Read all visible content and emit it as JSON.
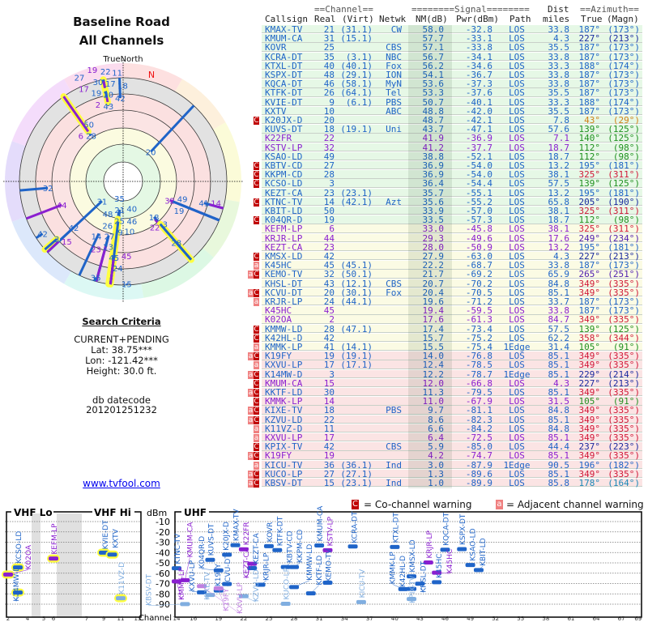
{
  "left": {
    "title1": "Baseline Road",
    "title2": "All Channels",
    "true_north": "TrueNorth",
    "mag_north": "N",
    "criteria_title": "Search Criteria",
    "mode": "CURRENT+PENDING",
    "lat": "Lat: 38.75***",
    "lon": "Lon: -121.42***",
    "height": "Height: 30.0 ft.",
    "db_label": "db datecode",
    "db_value": "201201251232",
    "link": "www.tvfool.com"
  },
  "table": {
    "group_channel": "==Channel==",
    "group_signal": "========Signal========",
    "group_dist": "Dist",
    "group_azimuth": "==Azimuth==",
    "col_callsign": "Callsign",
    "col_real": "Real",
    "col_virt": "(Virt)",
    "col_netwk": "Netwk",
    "col_nm": "NM(dB)",
    "col_pwr": "Pwr(dBm)",
    "col_path": "Path",
    "col_miles": "miles",
    "col_true": "True",
    "col_magn": "(Magn)",
    "rows": [
      {
        "f": "",
        "call": "KMAX-TV",
        "real": "21",
        "virt": "(31.1)",
        "net": "CW",
        "nm": "58.0",
        "pwr": "-32.8",
        "path": "LOS",
        "dist": "33.8",
        "tru": "187°",
        "mag": "(173°)",
        "c": "b"
      },
      {
        "f": "",
        "call": "KMUM-CA",
        "real": "31",
        "virt": "(15.1)",
        "net": "",
        "nm": "57.7",
        "pwr": "-33.1",
        "path": "LOS",
        "dist": "4.3",
        "tru": "227°",
        "mag": "(213°)",
        "c": "b"
      },
      {
        "f": "",
        "call": "KOVR",
        "real": "25",
        "virt": "",
        "net": "CBS",
        "nm": "57.1",
        "pwr": "-33.8",
        "path": "LOS",
        "dist": "35.5",
        "tru": "187°",
        "mag": "(173°)",
        "c": "b"
      },
      {
        "f": "",
        "call": "KCRA-DT",
        "real": "35",
        "virt": "(3.1)",
        "net": "NBC",
        "nm": "56.7",
        "pwr": "-34.1",
        "path": "LOS",
        "dist": "33.8",
        "tru": "187°",
        "mag": "(173°)",
        "c": "b"
      },
      {
        "f": "",
        "call": "KTXL-DT",
        "real": "40",
        "virt": "(40.1)",
        "net": "Fox",
        "nm": "56.2",
        "pwr": "-34.6",
        "path": "LOS",
        "dist": "33.3",
        "tru": "188°",
        "mag": "(174°)",
        "c": "b"
      },
      {
        "f": "",
        "call": "KSPX-DT",
        "real": "48",
        "virt": "(29.1)",
        "net": "ION",
        "nm": "54.1",
        "pwr": "-36.7",
        "path": "LOS",
        "dist": "33.8",
        "tru": "187°",
        "mag": "(173°)",
        "c": "b"
      },
      {
        "f": "",
        "call": "KQCA-DT",
        "real": "46",
        "virt": "(58.1)",
        "net": "MyN",
        "nm": "53.6",
        "pwr": "-37.3",
        "path": "LOS",
        "dist": "33.8",
        "tru": "187°",
        "mag": "(173°)",
        "c": "b"
      },
      {
        "f": "",
        "call": "KTFK-DT",
        "real": "26",
        "virt": "(64.1)",
        "net": "Tel",
        "nm": "53.3",
        "pwr": "-37.6",
        "path": "LOS",
        "dist": "35.5",
        "tru": "187°",
        "mag": "(173°)",
        "c": "b"
      },
      {
        "f": "",
        "call": "KVIE-DT",
        "real": "9",
        "virt": "(6.1)",
        "net": "PBS",
        "nm": "50.7",
        "pwr": "-40.1",
        "path": "LOS",
        "dist": "33.3",
        "tru": "188°",
        "mag": "(174°)",
        "c": "b"
      },
      {
        "f": "",
        "call": "KXTV",
        "real": "10",
        "virt": "",
        "net": "ABC",
        "nm": "48.8",
        "pwr": "-42.0",
        "path": "LOS",
        "dist": "35.5",
        "tru": "187°",
        "mag": "(173°)",
        "c": "b"
      },
      {
        "f": "C",
        "call": "K20JX-D",
        "real": "20",
        "virt": "",
        "net": "",
        "nm": "48.7",
        "pwr": "-42.1",
        "path": "LOS",
        "dist": "7.8",
        "tru": "43°",
        "mag": "(29°)",
        "c": "b"
      },
      {
        "f": "",
        "call": "KUVS-DT",
        "real": "18",
        "virt": "(19.1)",
        "net": "Uni",
        "nm": "43.7",
        "pwr": "-47.1",
        "path": "LOS",
        "dist": "57.6",
        "tru": "139°",
        "mag": "(125°)",
        "c": "b"
      },
      {
        "f": "",
        "call": "K22FR",
        "real": "22",
        "virt": "",
        "net": "",
        "nm": "41.9",
        "pwr": "-36.9",
        "path": "LOS",
        "dist": "7.1",
        "tru": "140°",
        "mag": "(125°)",
        "c": "p"
      },
      {
        "f": "",
        "call": "KSTV-LP",
        "real": "32",
        "virt": "",
        "net": "",
        "nm": "41.2",
        "pwr": "-37.7",
        "path": "LOS",
        "dist": "18.7",
        "tru": "112°",
        "mag": "(98°)",
        "c": "p"
      },
      {
        "f": "",
        "call": "KSAO-LD",
        "real": "49",
        "virt": "",
        "net": "",
        "nm": "38.8",
        "pwr": "-52.1",
        "path": "LOS",
        "dist": "18.7",
        "tru": "112°",
        "mag": "(98°)",
        "c": "b"
      },
      {
        "f": "C",
        "call": "KBTV-CD",
        "real": "27",
        "virt": "",
        "net": "",
        "nm": "36.9",
        "pwr": "-54.0",
        "path": "LOS",
        "dist": "13.2",
        "tru": "195°",
        "mag": "(181°)",
        "c": "b"
      },
      {
        "f": "C",
        "call": "KKPM-CD",
        "real": "28",
        "virt": "",
        "net": "",
        "nm": "36.9",
        "pwr": "-54.0",
        "path": "LOS",
        "dist": "38.1",
        "tru": "325°",
        "mag": "(311°)",
        "c": "b"
      },
      {
        "f": "C",
        "call": "KCSO-LD",
        "real": "3",
        "virt": "",
        "net": "",
        "nm": "36.4",
        "pwr": "-54.4",
        "path": "LOS",
        "dist": "57.5",
        "tru": "139°",
        "mag": "(125°)",
        "c": "b"
      },
      {
        "f": "",
        "call": "KEZT-CA",
        "real": "23",
        "virt": "(23.1)",
        "net": "",
        "nm": "35.7",
        "pwr": "-55.1",
        "path": "LOS",
        "dist": "13.2",
        "tru": "195°",
        "mag": "(181°)",
        "c": "b"
      },
      {
        "f": "C",
        "call": "KTNC-TV",
        "real": "14",
        "virt": "(42.1)",
        "net": "Azt",
        "nm": "35.6",
        "pwr": "-55.2",
        "path": "LOS",
        "dist": "65.8",
        "tru": "205°",
        "mag": "(190°)",
        "c": "b"
      },
      {
        "f": "",
        "call": "KBIT-LD",
        "real": "50",
        "virt": "",
        "net": "",
        "nm": "33.9",
        "pwr": "-57.0",
        "path": "LOS",
        "dist": "38.1",
        "tru": "325°",
        "mag": "(311°)",
        "c": "b"
      },
      {
        "f": "C",
        "call": "K04QR-D",
        "real": "19",
        "virt": "",
        "net": "",
        "nm": "33.5",
        "pwr": "-57.3",
        "path": "LOS",
        "dist": "18.7",
        "tru": "112°",
        "mag": "(98°)",
        "c": "b"
      },
      {
        "f": "",
        "call": "KEFM-LP",
        "real": "6",
        "virt": "",
        "net": "",
        "nm": "33.0",
        "pwr": "-45.8",
        "path": "LOS",
        "dist": "38.1",
        "tru": "325°",
        "mag": "(311°)",
        "c": "p"
      },
      {
        "f": "",
        "call": "KRJR-LP",
        "real": "44",
        "virt": "",
        "net": "",
        "nm": "29.3",
        "pwr": "-49.6",
        "path": "LOS",
        "dist": "17.6",
        "tru": "249°",
        "mag": "(234°)",
        "c": "p"
      },
      {
        "f": "",
        "call": "KEZT-CA",
        "real": "23",
        "virt": "",
        "net": "",
        "nm": "28.0",
        "pwr": "-50.9",
        "path": "LOS",
        "dist": "13.2",
        "tru": "195°",
        "mag": "(181°)",
        "c": "p"
      },
      {
        "f": "C",
        "call": "KMSX-LD",
        "real": "42",
        "virt": "",
        "net": "",
        "nm": "27.9",
        "pwr": "-63.0",
        "path": "LOS",
        "dist": "4.3",
        "tru": "227°",
        "mag": "(213°)",
        "c": "b"
      },
      {
        "f": "a",
        "call": "K45HC",
        "real": "45",
        "virt": "(45.1)",
        "net": "",
        "nm": "22.2",
        "pwr": "-68.7",
        "path": "LOS",
        "dist": "33.8",
        "tru": "187°",
        "mag": "(173°)",
        "c": "b"
      },
      {
        "f": "aC",
        "call": "KEMO-TV",
        "real": "32",
        "virt": "(50.1)",
        "net": "",
        "nm": "21.7",
        "pwr": "-69.2",
        "path": "LOS",
        "dist": "65.9",
        "tru": "265°",
        "mag": "(251°)",
        "c": "b"
      },
      {
        "f": "",
        "call": "KHSL-DT",
        "real": "43",
        "virt": "(12.1)",
        "net": "CBS",
        "nm": "20.7",
        "pwr": "-70.2",
        "path": "LOS",
        "dist": "84.8",
        "tru": "349°",
        "mag": "(335°)",
        "c": "b"
      },
      {
        "f": "aC",
        "call": "KCVU-DT",
        "real": "20",
        "virt": "(30.1)",
        "net": "Fox",
        "nm": "20.4",
        "pwr": "-70.5",
        "path": "LOS",
        "dist": "85.1",
        "tru": "349°",
        "mag": "(335°)",
        "c": "b"
      },
      {
        "f": "a",
        "call": "KRJR-LP",
        "real": "24",
        "virt": "(44.1)",
        "net": "",
        "nm": "19.6",
        "pwr": "-71.2",
        "path": "LOS",
        "dist": "33.7",
        "tru": "187°",
        "mag": "(173°)",
        "c": "b"
      },
      {
        "f": "",
        "call": "K45HC",
        "real": "45",
        "virt": "",
        "net": "",
        "nm": "19.4",
        "pwr": "-59.5",
        "path": "LOS",
        "dist": "33.8",
        "tru": "187°",
        "mag": "(173°)",
        "c": "p"
      },
      {
        "f": "",
        "call": "K02OA",
        "real": "2",
        "virt": "",
        "net": "",
        "nm": "17.6",
        "pwr": "-61.3",
        "path": "LOS",
        "dist": "84.7",
        "tru": "349°",
        "mag": "(335°)",
        "c": "p"
      },
      {
        "f": "C",
        "call": "KMMW-LD",
        "real": "28",
        "virt": "(47.1)",
        "net": "",
        "nm": "17.4",
        "pwr": "-73.4",
        "path": "LOS",
        "dist": "57.5",
        "tru": "139°",
        "mag": "(125°)",
        "c": "b"
      },
      {
        "f": "C",
        "call": "K42HL-D",
        "real": "42",
        "virt": "",
        "net": "",
        "nm": "15.7",
        "pwr": "-75.2",
        "path": "LOS",
        "dist": "62.2",
        "tru": "358°",
        "mag": "(344°)",
        "c": "b"
      },
      {
        "f": "a",
        "call": "KMMK-LP",
        "real": "41",
        "virt": "(14.1)",
        "net": "",
        "nm": "15.5",
        "pwr": "-75.4",
        "path": "1Edge",
        "dist": "31.4",
        "tru": "105°",
        "mag": "(91°)",
        "c": "b"
      },
      {
        "f": "aC",
        "call": "K19FY",
        "real": "19",
        "virt": "(19.1)",
        "net": "",
        "nm": "14.0",
        "pwr": "-76.8",
        "path": "LOS",
        "dist": "85.1",
        "tru": "349°",
        "mag": "(335°)",
        "c": "b"
      },
      {
        "f": "a",
        "call": "KXVU-LP",
        "real": "17",
        "virt": "(17.1)",
        "net": "",
        "nm": "12.4",
        "pwr": "-78.5",
        "path": "LOS",
        "dist": "85.1",
        "tru": "349°",
        "mag": "(335°)",
        "c": "b"
      },
      {
        "f": "aC",
        "call": "K14MW-D",
        "real": "3",
        "virt": "",
        "net": "",
        "nm": "12.2",
        "pwr": "-78.7",
        "path": "1Edge",
        "dist": "85.1",
        "tru": "229°",
        "mag": "(214°)",
        "c": "b"
      },
      {
        "f": "C",
        "call": "KMUM-CA",
        "real": "15",
        "virt": "",
        "net": "",
        "nm": "12.0",
        "pwr": "-66.8",
        "path": "LOS",
        "dist": "4.3",
        "tru": "227°",
        "mag": "(213°)",
        "c": "p"
      },
      {
        "f": "aC",
        "call": "KKTF-LD",
        "real": "30",
        "virt": "",
        "net": "",
        "nm": "11.3",
        "pwr": "-79.5",
        "path": "LOS",
        "dist": "85.1",
        "tru": "349°",
        "mag": "(335°)",
        "c": "b"
      },
      {
        "f": "C",
        "call": "KMMK-LP",
        "real": "14",
        "virt": "",
        "net": "",
        "nm": "11.0",
        "pwr": "-67.9",
        "path": "LOS",
        "dist": "31.5",
        "tru": "105°",
        "mag": "(91°)",
        "c": "p"
      },
      {
        "f": "aC",
        "call": "KIXE-TV",
        "real": "18",
        "virt": "",
        "net": "PBS",
        "nm": "9.7",
        "pwr": "-81.1",
        "path": "LOS",
        "dist": "84.8",
        "tru": "349°",
        "mag": "(335°)",
        "c": "b"
      },
      {
        "f": "aC",
        "call": "KZVU-LD",
        "real": "22",
        "virt": "",
        "net": "",
        "nm": "8.6",
        "pwr": "-82.3",
        "path": "LOS",
        "dist": "85.1",
        "tru": "349°",
        "mag": "(335°)",
        "c": "b"
      },
      {
        "f": "a",
        "call": "K11VZ-D",
        "real": "11",
        "virt": "",
        "net": "",
        "nm": "6.6",
        "pwr": "-84.2",
        "path": "LOS",
        "dist": "84.8",
        "tru": "349°",
        "mag": "(335°)",
        "c": "b"
      },
      {
        "f": "a",
        "call": "KXVU-LP",
        "real": "17",
        "virt": "",
        "net": "",
        "nm": "6.4",
        "pwr": "-72.5",
        "path": "LOS",
        "dist": "85.1",
        "tru": "349°",
        "mag": "(335°)",
        "c": "p"
      },
      {
        "f": "C",
        "call": "KPIX-TV",
        "real": "42",
        "virt": "",
        "net": "CBS",
        "nm": "5.9",
        "pwr": "-85.0",
        "path": "LOS",
        "dist": "44.4",
        "tru": "237°",
        "mag": "(223°)",
        "c": "b"
      },
      {
        "f": "aC",
        "call": "K19FY",
        "real": "19",
        "virt": "",
        "net": "",
        "nm": "4.2",
        "pwr": "-74.7",
        "path": "LOS",
        "dist": "85.1",
        "tru": "349°",
        "mag": "(335°)",
        "c": "p"
      },
      {
        "f": "a",
        "call": "KICU-TV",
        "real": "36",
        "virt": "(36.1)",
        "net": "Ind",
        "nm": "3.0",
        "pwr": "-87.9",
        "path": "1Edge",
        "dist": "90.5",
        "tru": "196°",
        "mag": "(182°)",
        "c": "b"
      },
      {
        "f": "aC",
        "call": "KUCO-LP",
        "real": "27",
        "virt": "(27.1)",
        "net": "",
        "nm": "1.3",
        "pwr": "-89.6",
        "path": "LOS",
        "dist": "85.1",
        "tru": "349°",
        "mag": "(335°)",
        "c": "b"
      },
      {
        "f": "aC",
        "call": "KBSV-DT",
        "real": "15",
        "virt": "(23.1)",
        "net": "Ind",
        "nm": "1.0",
        "pwr": "-89.9",
        "path": "LOS",
        "dist": "85.8",
        "tru": "178°",
        "mag": "(164°)",
        "c": "b"
      }
    ]
  },
  "legend": {
    "co_icon": "C",
    "co_label": "= Co-channel warning",
    "adj_icon": "a",
    "adj_label": "= Adjacent channel warning"
  },
  "spectrum": {
    "vhf_lo": "VHF Lo",
    "vhf_hi": "VHF Hi",
    "uhf": "UHF",
    "unit": "dBm",
    "channel_label": "Channel",
    "y_ticks": [
      "-10",
      "-20",
      "-30",
      "-40",
      "-50",
      "-60",
      "-70",
      "-80",
      "-90"
    ],
    "lo_ticks": [
      "2",
      "4",
      "5",
      "6"
    ],
    "hi_ticks": [
      "7",
      "9",
      "11",
      "13"
    ],
    "uhf_ticks": [
      "14",
      "16",
      "19",
      "22",
      "25",
      "28",
      "31",
      "34",
      "37",
      "40",
      "43",
      "46",
      "49",
      "52",
      "55",
      "58",
      "61",
      "64",
      "67",
      "69"
    ]
  },
  "colors": {
    "station": "#1f64c8",
    "translator": "#8a1fd0",
    "co_channel": "#c00000",
    "adjacent": "#f08080",
    "zone_good": "#e6f8e6",
    "zone_mid": "#fbfbe4",
    "zone_weak": "#fbe4e4",
    "halo": "#ffff40"
  }
}
